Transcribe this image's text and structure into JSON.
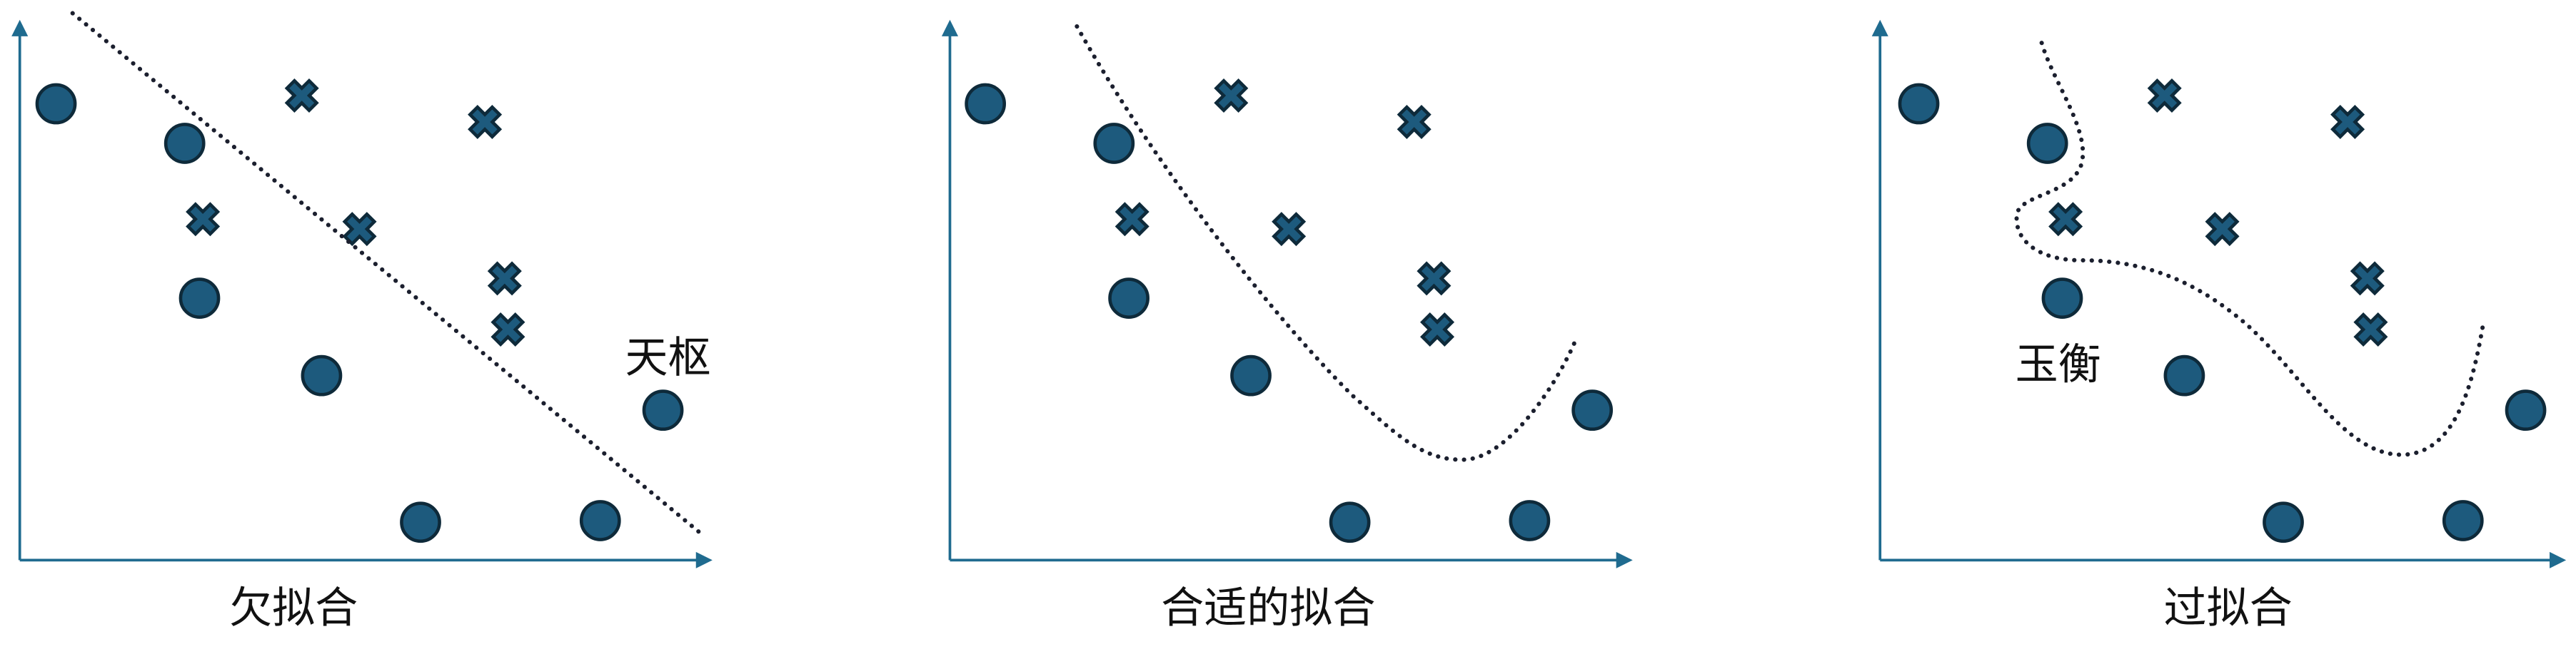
{
  "panels": [
    {
      "caption": "欠拟合"
    },
    {
      "caption": "合适的拟合"
    },
    {
      "caption": "过拟合"
    }
  ],
  "annotations": {
    "panel_1_label": "天枢",
    "panel_3_label": "玉衡"
  },
  "colors": {
    "axis": "#1f6b8f",
    "marker_fill": "#1d5a7d",
    "marker_stroke": "#0e2a3a",
    "fit_line": "#1b1f2e"
  }
}
